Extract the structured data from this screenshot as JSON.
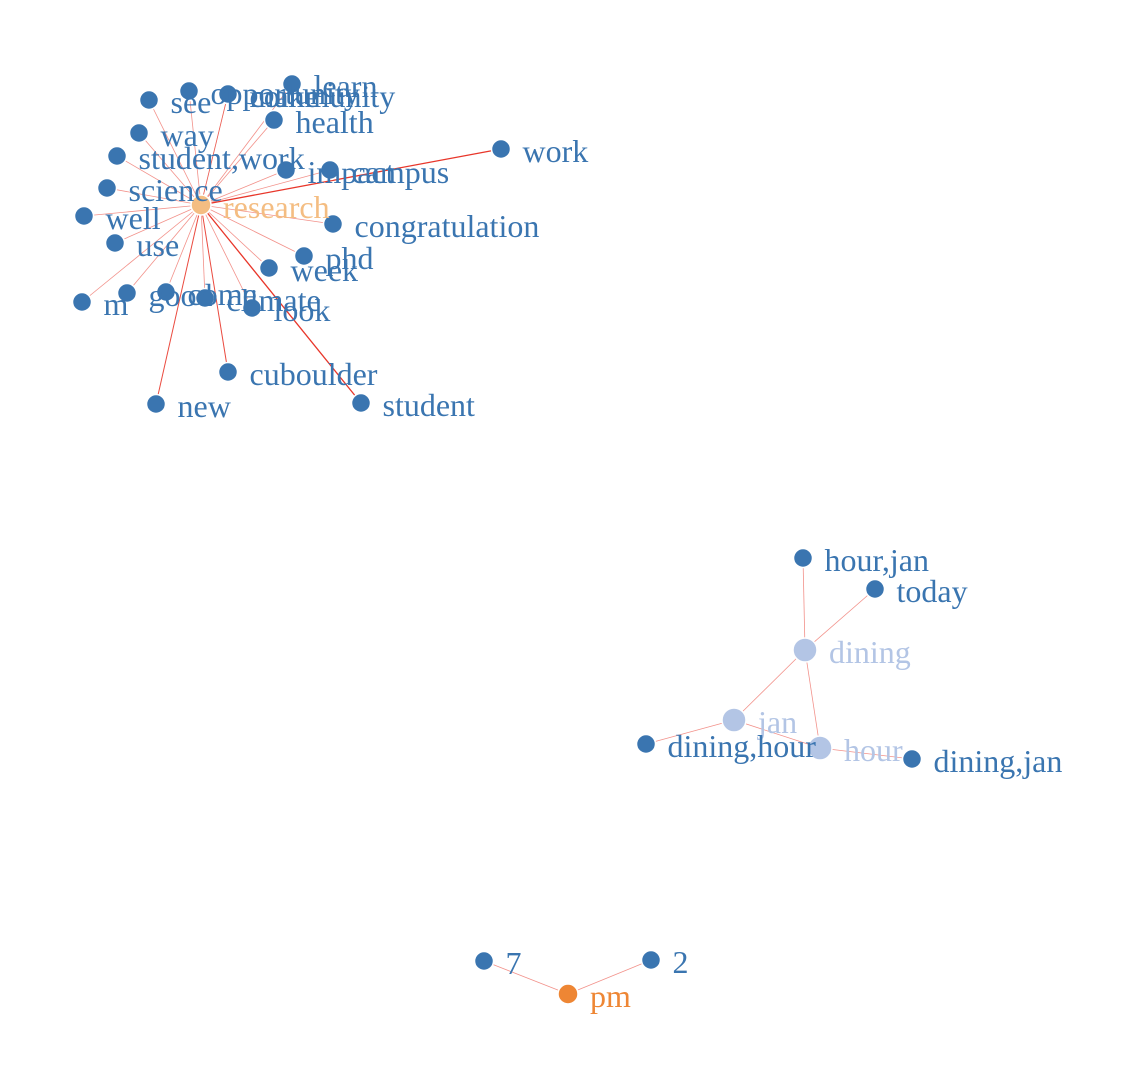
{
  "colors": {
    "leaf": "#3a75b0",
    "research": "#f4bd82",
    "dining_group": "#b3c5e5",
    "pm": "#ee8634",
    "edge": "#e8362a"
  },
  "graph": {
    "nodes": [
      {
        "id": "research",
        "label": "research",
        "role": "research"
      },
      {
        "id": "learn",
        "label": "learn",
        "role": "leaf"
      },
      {
        "id": "community",
        "label": "community",
        "role": "leaf"
      },
      {
        "id": "opportunity",
        "label": "opportunity",
        "role": "leaf"
      },
      {
        "id": "make",
        "label": "make",
        "role": "leaf"
      },
      {
        "id": "see",
        "label": "see",
        "role": "leaf"
      },
      {
        "id": "health",
        "label": "health",
        "role": "leaf"
      },
      {
        "id": "way",
        "label": "way",
        "role": "leaf"
      },
      {
        "id": "student_work",
        "label": "student,work",
        "role": "leaf"
      },
      {
        "id": "impact",
        "label": "impact",
        "role": "leaf"
      },
      {
        "id": "campus",
        "label": "campus",
        "role": "leaf"
      },
      {
        "id": "work",
        "label": "work",
        "role": "leaf"
      },
      {
        "id": "science",
        "label": "science",
        "role": "leaf"
      },
      {
        "id": "well",
        "label": "well",
        "role": "leaf"
      },
      {
        "id": "congratulation",
        "label": "congratulation",
        "role": "leaf"
      },
      {
        "id": "use",
        "label": "use",
        "role": "leaf"
      },
      {
        "id": "phd",
        "label": "phd",
        "role": "leaf"
      },
      {
        "id": "week",
        "label": "week",
        "role": "leaf"
      },
      {
        "id": "m",
        "label": "m",
        "role": "leaf"
      },
      {
        "id": "good",
        "label": "good",
        "role": "leaf"
      },
      {
        "id": "come",
        "label": "come",
        "role": "leaf"
      },
      {
        "id": "climate",
        "label": "climate",
        "role": "leaf"
      },
      {
        "id": "look",
        "label": "look",
        "role": "leaf"
      },
      {
        "id": "cuboulder",
        "label": "cuboulder",
        "role": "leaf"
      },
      {
        "id": "new",
        "label": "new",
        "role": "leaf"
      },
      {
        "id": "student",
        "label": "student",
        "role": "leaf"
      },
      {
        "id": "hour_jan",
        "label": "hour,jan",
        "role": "leaf"
      },
      {
        "id": "today",
        "label": "today",
        "role": "leaf"
      },
      {
        "id": "dining",
        "label": "dining",
        "role": "dining_group"
      },
      {
        "id": "jan",
        "label": "jan",
        "role": "dining_group"
      },
      {
        "id": "dining_hour",
        "label": "dining,hour",
        "role": "leaf"
      },
      {
        "id": "hour",
        "label": "hour",
        "role": "dining_group"
      },
      {
        "id": "dining_jan",
        "label": "dining,jan",
        "role": "leaf"
      },
      {
        "id": "seven",
        "label": "7",
        "role": "leaf"
      },
      {
        "id": "two",
        "label": "2",
        "role": "leaf"
      },
      {
        "id": "pm",
        "label": "pm",
        "role": "pm"
      }
    ],
    "edges": [
      {
        "source": "research",
        "target": "learn",
        "weight": 1
      },
      {
        "source": "research",
        "target": "community",
        "weight": 1
      },
      {
        "source": "research",
        "target": "opportunity",
        "weight": 1
      },
      {
        "source": "research",
        "target": "make",
        "weight": 1
      },
      {
        "source": "research",
        "target": "see",
        "weight": 1
      },
      {
        "source": "research",
        "target": "health",
        "weight": 1
      },
      {
        "source": "research",
        "target": "way",
        "weight": 1
      },
      {
        "source": "research",
        "target": "student_work",
        "weight": 1
      },
      {
        "source": "research",
        "target": "impact",
        "weight": 1
      },
      {
        "source": "research",
        "target": "campus",
        "weight": 1
      },
      {
        "source": "research",
        "target": "work",
        "weight": 3
      },
      {
        "source": "research",
        "target": "science",
        "weight": 1
      },
      {
        "source": "research",
        "target": "well",
        "weight": 1
      },
      {
        "source": "research",
        "target": "congratulation",
        "weight": 1
      },
      {
        "source": "research",
        "target": "use",
        "weight": 1
      },
      {
        "source": "research",
        "target": "phd",
        "weight": 1
      },
      {
        "source": "research",
        "target": "week",
        "weight": 1
      },
      {
        "source": "research",
        "target": "m",
        "weight": 1
      },
      {
        "source": "research",
        "target": "good",
        "weight": 1
      },
      {
        "source": "research",
        "target": "come",
        "weight": 1
      },
      {
        "source": "research",
        "target": "climate",
        "weight": 1
      },
      {
        "source": "research",
        "target": "look",
        "weight": 1
      },
      {
        "source": "research",
        "target": "cuboulder",
        "weight": 2
      },
      {
        "source": "research",
        "target": "new",
        "weight": 2
      },
      {
        "source": "research",
        "target": "student",
        "weight": 3
      },
      {
        "source": "dining",
        "target": "hour_jan",
        "weight": 1
      },
      {
        "source": "dining",
        "target": "today",
        "weight": 1
      },
      {
        "source": "dining",
        "target": "jan",
        "weight": 1
      },
      {
        "source": "dining",
        "target": "hour",
        "weight": 1
      },
      {
        "source": "jan",
        "target": "dining_hour",
        "weight": 1
      },
      {
        "source": "jan",
        "target": "hour",
        "weight": 1
      },
      {
        "source": "hour",
        "target": "dining_jan",
        "weight": 1
      },
      {
        "source": "pm",
        "target": "seven",
        "weight": 1
      },
      {
        "source": "pm",
        "target": "two",
        "weight": 1
      }
    ]
  }
}
